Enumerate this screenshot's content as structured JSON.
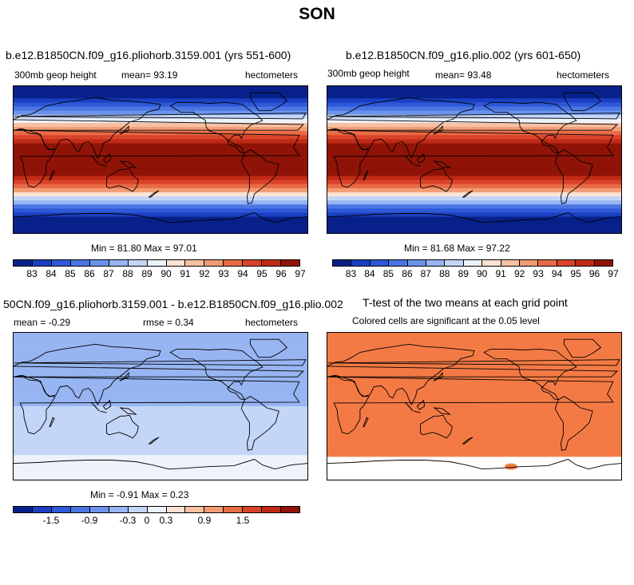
{
  "title": "SON",
  "panels": [
    {
      "title": "b.e12.B1850CN.f09_g16.pliohorb.3159.001 (yrs 551-600)",
      "variable": "300mb geop height",
      "stat": "mean=  93.19",
      "units": "hectometers",
      "minmax": "Min =  81.80 Max =  97.01"
    },
    {
      "title": "b.e12.B1850CN.f09_g16.plio.002 (yrs 601-650)",
      "variable": "300mb geop height",
      "stat": "mean=  93.48",
      "units": "hectometers",
      "minmax": "Min =  81.68 Max =  97.22"
    },
    {
      "title": "50CN.f09_g16.pliohorb.3159.001 - b.e12.B1850CN.f09_g16.plio.002",
      "stat": "mean =  -0.29",
      "rmse": "rmse =   0.34",
      "units": "hectometers",
      "minmax": "Min =  -0.91 Max =   0.23"
    },
    {
      "title": "T-test of the two means at each grid point",
      "subtitle": "Colored cells are significant at the 0.05 level"
    }
  ],
  "chart_data": [
    {
      "type": "heatmap",
      "name": "field-panel-1",
      "colorbar_ticks": [
        "83",
        "84",
        "85",
        "86",
        "87",
        "88",
        "89",
        "90",
        "91",
        "92",
        "93",
        "94",
        "95",
        "96",
        "97"
      ],
      "colors": [
        "#08218a",
        "#1a3fc2",
        "#2e58d8",
        "#4a76e3",
        "#6b93ec",
        "#97b5f2",
        "#c4d6f7",
        "#eef3fb",
        "#fbe2d3",
        "#f8c0a2",
        "#f29c75",
        "#e96b45",
        "#d9432a",
        "#c02a15",
        "#8f1407"
      ],
      "latitude_bands": [
        {
          "lat": 80,
          "value": 82.5
        },
        {
          "lat": 70,
          "value": 83.5
        },
        {
          "lat": 60,
          "value": 86
        },
        {
          "lat": 50,
          "value": 89
        },
        {
          "lat": 40,
          "value": 92
        },
        {
          "lat": 30,
          "value": 94.5
        },
        {
          "lat": 20,
          "value": 96
        },
        {
          "lat": 0,
          "value": 96.5
        },
        {
          "lat": -20,
          "value": 96
        },
        {
          "lat": -30,
          "value": 94.5
        },
        {
          "lat": -40,
          "value": 91.5
        },
        {
          "lat": -50,
          "value": 88
        },
        {
          "lat": -60,
          "value": 85
        },
        {
          "lat": -70,
          "value": 83
        },
        {
          "lat": -80,
          "value": 82
        }
      ]
    },
    {
      "type": "heatmap",
      "name": "field-panel-2",
      "colorbar_ticks": [
        "83",
        "84",
        "85",
        "86",
        "87",
        "88",
        "89",
        "90",
        "91",
        "92",
        "93",
        "94",
        "95",
        "96",
        "97"
      ],
      "colors": [
        "#08218a",
        "#1a3fc2",
        "#2e58d8",
        "#4a76e3",
        "#6b93ec",
        "#97b5f2",
        "#c4d6f7",
        "#eef3fb",
        "#fbe2d3",
        "#f8c0a2",
        "#f29c75",
        "#e96b45",
        "#d9432a",
        "#c02a15",
        "#8f1407"
      ],
      "latitude_bands": [
        {
          "lat": 80,
          "value": 82.5
        },
        {
          "lat": 70,
          "value": 83.5
        },
        {
          "lat": 60,
          "value": 86
        },
        {
          "lat": 50,
          "value": 89
        },
        {
          "lat": 40,
          "value": 92
        },
        {
          "lat": 30,
          "value": 94.5
        },
        {
          "lat": 20,
          "value": 96
        },
        {
          "lat": 0,
          "value": 96.8
        },
        {
          "lat": -20,
          "value": 96
        },
        {
          "lat": -30,
          "value": 94.5
        },
        {
          "lat": -40,
          "value": 91.5
        },
        {
          "lat": -50,
          "value": 88
        },
        {
          "lat": -60,
          "value": 85
        },
        {
          "lat": -70,
          "value": 83
        },
        {
          "lat": -80,
          "value": 82
        }
      ],
      "max_region": {
        "value": 97.2,
        "lat_range": [
          -8,
          14
        ],
        "lon_range": [
          40,
          210
        ]
      }
    },
    {
      "type": "heatmap",
      "name": "difference-panel",
      "colorbar_ticks": [
        "-1.5",
        "-0.9",
        "-0.3",
        "0",
        "0.3",
        "0.9",
        "1.5"
      ],
      "colors": [
        "#08218a",
        "#1a3fc2",
        "#2e58d8",
        "#4a76e3",
        "#6b93ec",
        "#97b5f2",
        "#c4d6f7",
        "#eef3fb",
        "#fbe2d3",
        "#f8c0a2",
        "#f29c75",
        "#e96b45",
        "#d9432a",
        "#c02a15",
        "#8f1407"
      ],
      "latitude_bands": [
        {
          "lat": 80,
          "value": -0.5
        },
        {
          "lat": 60,
          "value": -0.45
        },
        {
          "lat": 45,
          "value": -0.6
        },
        {
          "lat": 30,
          "value": -0.4
        },
        {
          "lat": 0,
          "value": -0.3
        },
        {
          "lat": -30,
          "value": -0.2
        },
        {
          "lat": -50,
          "value": -0.25
        },
        {
          "lat": -65,
          "value": 0.05
        },
        {
          "lat": -80,
          "value": 0.15
        }
      ]
    },
    {
      "type": "heatmap",
      "name": "ttest-panel",
      "significant_color": "#f47a45",
      "significant_lat_range": [
        -62,
        90
      ],
      "significant_dots": [
        {
          "lat": -74,
          "lon": 225
        }
      ]
    }
  ]
}
